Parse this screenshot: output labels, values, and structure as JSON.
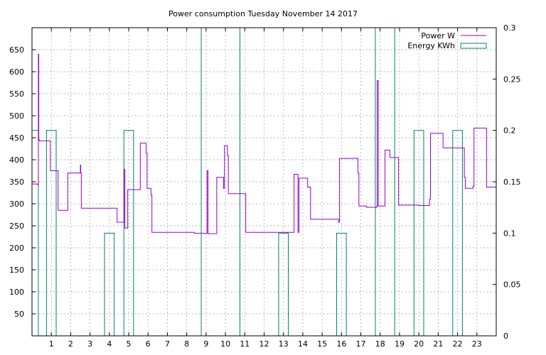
{
  "chart_data": {
    "type": "line",
    "title": "Power consumption Tuesday November 14 2017",
    "xlabel": "",
    "ylabel": "",
    "y2label": "",
    "grid": true,
    "legend_position": "top-right",
    "xlim": [
      0,
      24
    ],
    "ylim": [
      0,
      700
    ],
    "y2lim": [
      0,
      0.3
    ],
    "x_ticks": [
      1,
      2,
      3,
      4,
      5,
      6,
      7,
      8,
      9,
      10,
      11,
      12,
      13,
      14,
      15,
      16,
      17,
      18,
      19,
      20,
      21,
      22,
      23
    ],
    "y_ticks": [
      50,
      100,
      150,
      200,
      250,
      300,
      350,
      400,
      450,
      500,
      550,
      600,
      650
    ],
    "y2_ticks": [
      0,
      0.05,
      0.1,
      0.15,
      0.2,
      0.25,
      0.3
    ],
    "series": [
      {
        "name": "Power W",
        "axis": "left",
        "style": "line",
        "color": "#9400d3",
        "x": [
          0,
          0.3,
          0.33,
          0.35,
          0.38,
          0.4,
          0.45,
          0.9,
          0.95,
          1.3,
          1.35,
          1.8,
          1.85,
          2.45,
          2.5,
          2.52,
          2.55,
          3.3,
          4.0,
          4.35,
          4.4,
          4.72,
          4.75,
          4.8,
          4.85,
          4.95,
          5.0,
          5.55,
          5.6,
          5.85,
          5.9,
          5.95,
          6.1,
          6.15,
          6.2,
          6.5,
          8.0,
          8.4,
          9.0,
          9.05,
          9.1,
          9.15,
          9.5,
          9.55,
          9.85,
          9.9,
          9.95,
          10.0,
          10.1,
          10.15,
          10.3,
          11.0,
          11.05,
          12.0,
          12.7,
          13.3,
          13.35,
          13.55,
          13.75,
          13.8,
          14.1,
          14.2,
          14.25,
          14.4,
          14.45,
          15.0,
          15.8,
          15.85,
          15.9,
          16.8,
          16.85,
          16.9,
          17.2,
          17.3,
          17.8,
          17.82,
          17.85,
          17.9,
          17.95,
          18.2,
          18.25,
          18.3,
          18.5,
          18.55,
          18.9,
          18.95,
          19.0,
          19.5,
          20.0,
          20.5,
          20.55,
          20.6,
          21.2,
          21.25,
          21.8,
          22.3,
          22.35,
          22.4,
          22.8,
          22.85,
          23.45,
          23.5,
          24.0
        ],
        "y": [
          345,
          343,
          640,
          445,
          443,
          443,
          443,
          443,
          375,
          375,
          285,
          285,
          370,
          370,
          388,
          370,
          290,
          290,
          290,
          290,
          258,
          258,
          378,
          245,
          245,
          332,
          332,
          332,
          438,
          438,
          415,
          335,
          335,
          320,
          235,
          235,
          235,
          233,
          233,
          375,
          232,
          232,
          232,
          360,
          360,
          335,
          432,
          432,
          410,
          323,
          323,
          323,
          235,
          235,
          235,
          235,
          235,
          367,
          235,
          358,
          358,
          358,
          338,
          265,
          265,
          265,
          265,
          258,
          403,
          403,
          370,
          295,
          295,
          292,
          292,
          295,
          580,
          295,
          295,
          295,
          422,
          422,
          405,
          405,
          405,
          297,
          297,
          297,
          296,
          296,
          310,
          460,
          460,
          427,
          427,
          427,
          360,
          335,
          340,
          472,
          472,
          338,
          338
        ]
      },
      {
        "name": "Energy KWh",
        "axis": "right",
        "style": "steps",
        "color": "#00806e",
        "x": [
          0,
          0.33,
          0.75,
          1.25,
          1.75,
          2.25,
          2.75,
          3.25,
          3.75,
          4.25,
          4.75,
          5.25,
          5.75,
          6.25,
          6.75,
          7.25,
          7.75,
          8.25,
          8.75,
          9.25,
          9.75,
          10.25,
          10.75,
          11.25,
          11.75,
          12.25,
          12.75,
          13.25,
          13.75,
          14.25,
          14.75,
          15.25,
          15.75,
          16.25,
          16.75,
          17.25,
          17.75,
          18.25,
          18.75,
          19.25,
          19.75,
          20.25,
          20.75,
          21.25,
          21.75,
          22.25,
          22.75,
          23.25
        ],
        "y": [
          0.2,
          0,
          0.2,
          0,
          0,
          0,
          0,
          0,
          0.1,
          0,
          0.2,
          0,
          0,
          0,
          0,
          0,
          0,
          0,
          0.3,
          0.3,
          0.3,
          0.3,
          0,
          0,
          0,
          0,
          0.1,
          0,
          0,
          0,
          0,
          0,
          0.1,
          0,
          0,
          0,
          0.3,
          0.3,
          0,
          0,
          0.2,
          0,
          0,
          0,
          0.2,
          0,
          0,
          0
        ]
      }
    ]
  }
}
